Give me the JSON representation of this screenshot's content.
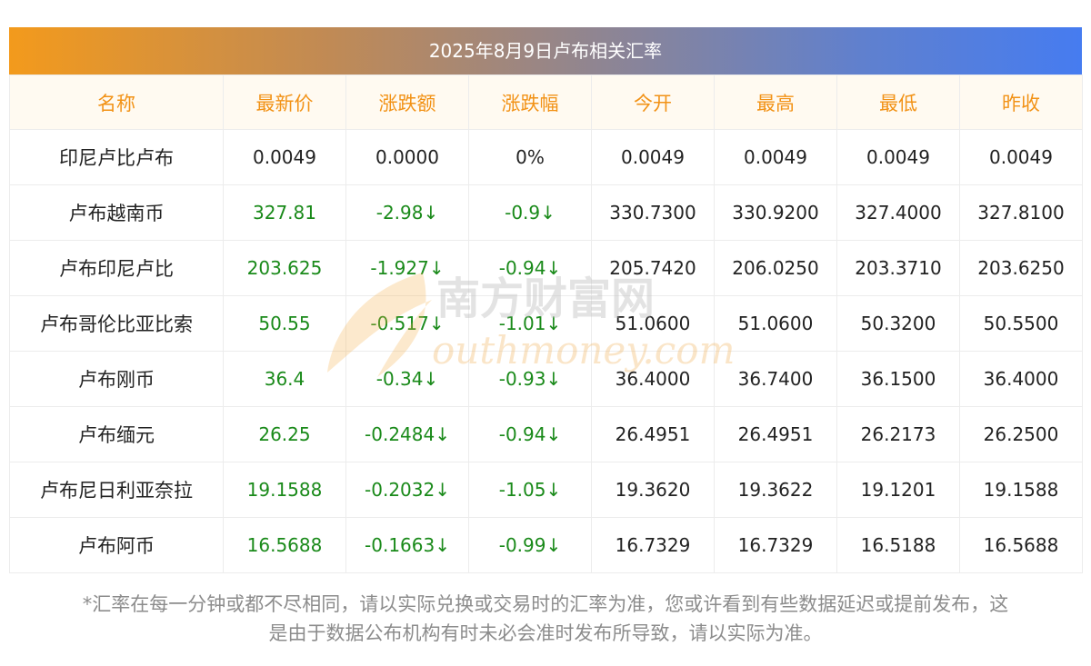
{
  "title": "2025年8月9日卢布相关汇率",
  "headers": [
    "名称",
    "最新价",
    "涨跌额",
    "涨跌幅",
    "今开",
    "最高",
    "最低",
    "昨收"
  ],
  "rows": [
    {
      "name": "印尼卢比卢布",
      "latest": "0.0049",
      "change": "0.0000",
      "change_pct": "0%",
      "open": "0.0049",
      "high": "0.0049",
      "low": "0.0049",
      "prev_close": "0.0049",
      "down": false
    },
    {
      "name": "卢布越南币",
      "latest": "327.81",
      "change": "-2.98↓",
      "change_pct": "-0.9↓",
      "open": "330.7300",
      "high": "330.9200",
      "low": "327.4000",
      "prev_close": "327.8100",
      "down": true
    },
    {
      "name": "卢布印尼卢比",
      "latest": "203.625",
      "change": "-1.927↓",
      "change_pct": "-0.94↓",
      "open": "205.7420",
      "high": "206.0250",
      "low": "203.3710",
      "prev_close": "203.6250",
      "down": true
    },
    {
      "name": "卢布哥伦比亚比索",
      "latest": "50.55",
      "change": "-0.517↓",
      "change_pct": "-1.01↓",
      "open": "51.0600",
      "high": "51.0600",
      "low": "50.3200",
      "prev_close": "50.5500",
      "down": true
    },
    {
      "name": "卢布刚币",
      "latest": "36.4",
      "change": "-0.34↓",
      "change_pct": "-0.93↓",
      "open": "36.4000",
      "high": "36.7400",
      "low": "36.1500",
      "prev_close": "36.4000",
      "down": true
    },
    {
      "name": "卢布缅元",
      "latest": "26.25",
      "change": "-0.2484↓",
      "change_pct": "-0.94↓",
      "open": "26.4951",
      "high": "26.4951",
      "low": "26.2173",
      "prev_close": "26.2500",
      "down": true
    },
    {
      "name": "卢布尼日利亚奈拉",
      "latest": "19.1588",
      "change": "-0.2032↓",
      "change_pct": "-1.05↓",
      "open": "19.3620",
      "high": "19.3622",
      "low": "19.1201",
      "prev_close": "19.1588",
      "down": true
    },
    {
      "name": "卢布阿币",
      "latest": "16.5688",
      "change": "-0.1663↓",
      "change_pct": "-0.99↓",
      "open": "16.7329",
      "high": "16.7329",
      "low": "16.5188",
      "prev_close": "16.5688",
      "down": true
    }
  ],
  "footnote": {
    "line1": "*汇率在每一分钟或都不尽相同，请以实际兑换或交易时的汇率为准，您或许看到有些数据延迟或提前发布，这",
    "line2": "是由于数据公布机构有时未必会准时发布所导致，请以实际为准。"
  },
  "watermark": {
    "cn": "南方财富网",
    "en": "outhmoney.com"
  },
  "colors": {
    "header_text": "#f29216",
    "down_green": "#1a8a1a",
    "title_gradient_start": "#f39a1c",
    "title_gradient_end": "#467cf0"
  }
}
